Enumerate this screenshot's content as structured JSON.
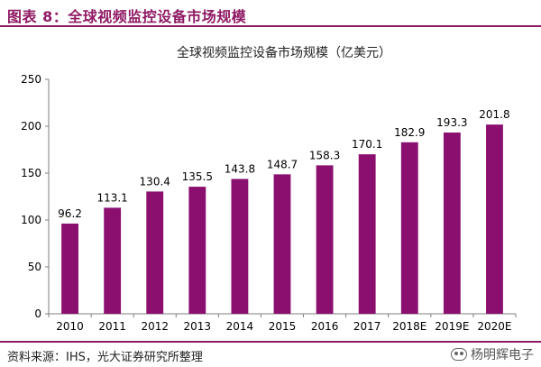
{
  "figure": {
    "title": "图表 8：全球视频监控设备市场规模",
    "source": "资料来源：IHS，光大证券研究所整理",
    "watermark": "杨明辉电子"
  },
  "colors": {
    "bar": "#8a0f6f",
    "header": "#8f1a63",
    "axis": "#7f7f7f",
    "text": "#000000"
  },
  "chart_data": {
    "type": "bar",
    "title": "全球视频监控设备市场规模（亿美元）",
    "categories": [
      "2010",
      "2011",
      "2012",
      "2013",
      "2014",
      "2015",
      "2016",
      "2017",
      "2018E",
      "2019E",
      "2020E"
    ],
    "values": [
      96.2,
      113.1,
      130.4,
      135.5,
      143.8,
      148.7,
      158.3,
      170.1,
      182.9,
      193.3,
      201.8
    ],
    "data_labels": [
      "96.2",
      "113.1",
      "130.4",
      "135.5",
      "143.8",
      "148.7",
      "158.3",
      "170.1",
      "182.9",
      "193.3",
      "201.8"
    ],
    "ylim": [
      0,
      250
    ],
    "yticks": [
      0,
      50,
      100,
      150,
      200,
      250
    ],
    "ytick_labels": [
      "0",
      "50",
      "100",
      "150",
      "200",
      "250"
    ],
    "xlabel": "",
    "ylabel": "",
    "grid": false,
    "legend": "none"
  }
}
